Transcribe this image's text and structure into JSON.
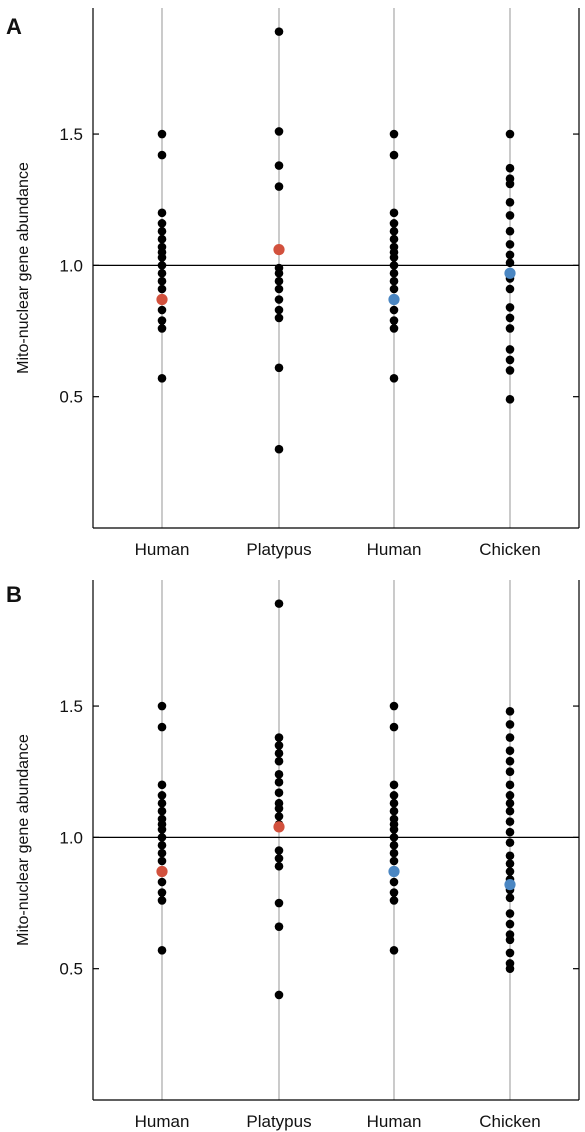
{
  "colors": {
    "dot": "#000000",
    "highlight_red": "#d2513d",
    "highlight_blue": "#4a86c2",
    "category_line": "#a8a8a8",
    "axis": "#000000"
  },
  "chart_data": [
    {
      "type": "scatter",
      "panel_label": "A",
      "ylabel": "Mito-nuclear gene abundance",
      "categories": [
        "Human",
        "Platypus",
        "Human",
        "Chicken"
      ],
      "yticks": [
        "0.5",
        "1.0",
        "1.5"
      ],
      "ytick_values": [
        0.5,
        1.0,
        1.5
      ],
      "ylim": [
        0.0,
        1.98
      ],
      "reference_line": 1.0,
      "grid": false,
      "points": [
        [
          0.57,
          0.76,
          0.79,
          0.83,
          0.87,
          0.91,
          0.94,
          0.97,
          1.0,
          1.03,
          1.05,
          1.07,
          1.1,
          1.13,
          1.16,
          1.2,
          1.42,
          1.5
        ],
        [
          0.3,
          0.61,
          0.8,
          0.83,
          0.87,
          0.91,
          0.94,
          0.97,
          0.99,
          1.3,
          1.38,
          1.51,
          1.89
        ],
        [
          0.57,
          0.76,
          0.79,
          0.83,
          0.87,
          0.91,
          0.94,
          0.97,
          1.0,
          1.03,
          1.05,
          1.07,
          1.1,
          1.13,
          1.16,
          1.2,
          1.42,
          1.5
        ],
        [
          0.49,
          0.6,
          0.64,
          0.68,
          0.76,
          0.8,
          0.84,
          0.91,
          0.95,
          0.97,
          1.01,
          1.04,
          1.08,
          1.13,
          1.19,
          1.24,
          1.31,
          1.33,
          1.37,
          1.5
        ]
      ],
      "highlights": [
        {
          "category_index": 0,
          "value": 0.87,
          "color": "red"
        },
        {
          "category_index": 1,
          "value": 1.06,
          "color": "red"
        },
        {
          "category_index": 2,
          "value": 0.87,
          "color": "blue"
        },
        {
          "category_index": 3,
          "value": 0.97,
          "color": "blue"
        }
      ]
    },
    {
      "type": "scatter",
      "panel_label": "B",
      "ylabel": "Mito-nuclear gene abundance",
      "categories": [
        "Human",
        "Platypus",
        "Human",
        "Chicken"
      ],
      "yticks": [
        "0.5",
        "1.0",
        "1.5"
      ],
      "ytick_values": [
        0.5,
        1.0,
        1.5
      ],
      "ylim": [
        0.0,
        1.98
      ],
      "reference_line": 1.0,
      "grid": false,
      "points": [
        [
          0.57,
          0.76,
          0.79,
          0.83,
          0.87,
          0.91,
          0.94,
          0.97,
          1.0,
          1.03,
          1.05,
          1.07,
          1.1,
          1.13,
          1.16,
          1.2,
          1.42,
          1.5
        ],
        [
          0.4,
          0.66,
          0.75,
          0.89,
          0.92,
          0.95,
          1.05,
          1.08,
          1.11,
          1.13,
          1.17,
          1.21,
          1.24,
          1.29,
          1.32,
          1.35,
          1.38,
          1.89
        ],
        [
          0.57,
          0.76,
          0.79,
          0.83,
          0.87,
          0.91,
          0.94,
          0.97,
          1.0,
          1.03,
          1.05,
          1.07,
          1.1,
          1.13,
          1.16,
          1.2,
          1.42,
          1.5
        ],
        [
          0.5,
          0.52,
          0.56,
          0.61,
          0.63,
          0.67,
          0.71,
          0.77,
          0.8,
          0.84,
          0.87,
          0.9,
          0.93,
          0.98,
          1.02,
          1.06,
          1.1,
          1.13,
          1.16,
          1.2,
          1.25,
          1.29,
          1.33,
          1.38,
          1.43,
          1.48
        ]
      ],
      "highlights": [
        {
          "category_index": 0,
          "value": 0.87,
          "color": "red"
        },
        {
          "category_index": 1,
          "value": 1.04,
          "color": "red"
        },
        {
          "category_index": 2,
          "value": 0.87,
          "color": "blue"
        },
        {
          "category_index": 3,
          "value": 0.82,
          "color": "blue"
        }
      ]
    }
  ]
}
